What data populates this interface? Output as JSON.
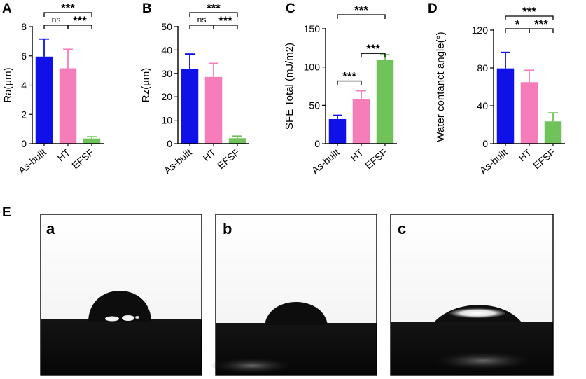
{
  "panel_e_label": "E",
  "chart_data": [
    {
      "type": "bar",
      "panel": "A",
      "categories": [
        "As-built",
        "HT",
        "EFSF"
      ],
      "values": [
        5.95,
        5.15,
        0.35
      ],
      "errors": [
        1.2,
        1.3,
        0.12
      ],
      "colors": [
        "#1010e8",
        "#f57dba",
        "#6fc35a"
      ],
      "ylabel": "Ra(μm)",
      "ylim": [
        0,
        8
      ],
      "yticks": [
        0,
        2,
        4,
        6,
        8
      ],
      "significance": [
        {
          "from": 0,
          "to": 1,
          "label": "ns"
        },
        {
          "from": 1,
          "to": 2,
          "label": "***"
        },
        {
          "from": 0,
          "to": 2,
          "label": "***"
        }
      ]
    },
    {
      "type": "bar",
      "panel": "B",
      "categories": [
        "As-built",
        "HT",
        "EFSF"
      ],
      "values": [
        32.0,
        28.5,
        2.3
      ],
      "errors": [
        6.3,
        5.8,
        0.9
      ],
      "colors": [
        "#1010e8",
        "#f57dba",
        "#6fc35a"
      ],
      "ylabel": "Rz(μm)",
      "ylim": [
        0,
        50
      ],
      "yticks": [
        0,
        10,
        20,
        30,
        40,
        50
      ],
      "significance": [
        {
          "from": 0,
          "to": 1,
          "label": "ns"
        },
        {
          "from": 1,
          "to": 2,
          "label": "***"
        },
        {
          "from": 0,
          "to": 2,
          "label": "***"
        }
      ]
    },
    {
      "type": "bar",
      "panel": "C",
      "categories": [
        "As-built",
        "HT",
        "EFSF"
      ],
      "values": [
        32,
        58.5,
        109
      ],
      "errors": [
        5,
        10.5,
        7
      ],
      "colors": [
        "#1010e8",
        "#f57dba",
        "#6fc35a"
      ],
      "ylabel": "SFE Total (mJ/m2)",
      "ylim": [
        0,
        150
      ],
      "yticks": [
        0,
        50,
        100,
        150
      ],
      "significance": [
        {
          "from": 0,
          "to": 1,
          "label": "***"
        },
        {
          "from": 1,
          "to": 2,
          "label": "***"
        },
        {
          "from": 0,
          "to": 2,
          "label": "***"
        }
      ]
    },
    {
      "type": "bar",
      "panel": "D",
      "categories": [
        "As-built",
        "HT",
        "EFSF"
      ],
      "values": [
        79.5,
        65,
        23.5
      ],
      "errors": [
        17,
        12.5,
        9
      ],
      "colors": [
        "#1010e8",
        "#f57dba",
        "#6fc35a"
      ],
      "ylabel": "Water contanct angle(°)",
      "ylim": [
        0,
        120
      ],
      "yticks": [
        0,
        40,
        80,
        120
      ],
      "significance": [
        {
          "from": 0,
          "to": 1,
          "label": "*"
        },
        {
          "from": 1,
          "to": 2,
          "label": "***"
        },
        {
          "from": 0,
          "to": 2,
          "label": "***"
        }
      ]
    }
  ],
  "photos": [
    {
      "label": "a",
      "contact_angle_deg": 79.5
    },
    {
      "label": "b",
      "contact_angle_deg": 65
    },
    {
      "label": "c",
      "contact_angle_deg": 23.5
    }
  ]
}
